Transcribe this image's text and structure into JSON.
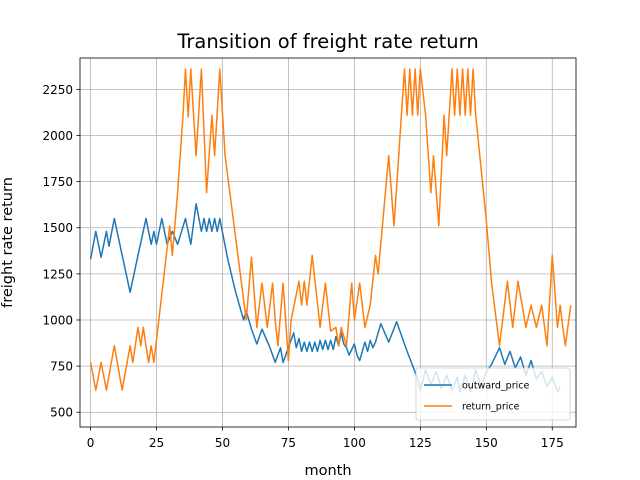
{
  "chart_data": {
    "type": "line",
    "title": "Transition of freight rate return",
    "xlabel": "month",
    "ylabel": "freight rate return",
    "xlim": [
      -4,
      184
    ],
    "ylim": [
      420,
      2420
    ],
    "xticks": [
      0,
      25,
      50,
      75,
      100,
      125,
      150,
      175
    ],
    "yticks": [
      500,
      750,
      1000,
      1250,
      1500,
      1750,
      2000,
      2250
    ],
    "grid": true,
    "legend_position": "lower-right",
    "series": [
      {
        "name": "outward_price",
        "color": "#1f77b4",
        "points": [
          [
            0,
            1330
          ],
          [
            2,
            1480
          ],
          [
            4,
            1340
          ],
          [
            6,
            1480
          ],
          [
            7,
            1400
          ],
          [
            9,
            1550
          ],
          [
            12,
            1350
          ],
          [
            15,
            1150
          ],
          [
            18,
            1350
          ],
          [
            21,
            1550
          ],
          [
            23,
            1410
          ],
          [
            24,
            1480
          ],
          [
            25,
            1410
          ],
          [
            27,
            1550
          ],
          [
            29,
            1410
          ],
          [
            31,
            1480
          ],
          [
            33,
            1410
          ],
          [
            36,
            1550
          ],
          [
            38,
            1410
          ],
          [
            40,
            1630
          ],
          [
            42,
            1480
          ],
          [
            43,
            1550
          ],
          [
            44,
            1480
          ],
          [
            45,
            1550
          ],
          [
            46,
            1480
          ],
          [
            47,
            1550
          ],
          [
            48,
            1480
          ],
          [
            49,
            1550
          ],
          [
            52,
            1330
          ],
          [
            55,
            1150
          ],
          [
            58,
            1000
          ],
          [
            59,
            1050
          ],
          [
            61,
            950
          ],
          [
            63,
            870
          ],
          [
            65,
            950
          ],
          [
            68,
            850
          ],
          [
            70,
            770
          ],
          [
            72,
            850
          ],
          [
            73,
            770
          ],
          [
            75,
            850
          ],
          [
            77,
            930
          ],
          [
            78,
            850
          ],
          [
            79,
            900
          ],
          [
            80,
            830
          ],
          [
            81,
            880
          ],
          [
            82,
            830
          ],
          [
            83,
            880
          ],
          [
            84,
            830
          ],
          [
            85,
            880
          ],
          [
            86,
            830
          ],
          [
            87,
            890
          ],
          [
            88,
            840
          ],
          [
            89,
            890
          ],
          [
            90,
            840
          ],
          [
            91,
            890
          ],
          [
            92,
            840
          ],
          [
            93,
            910
          ],
          [
            94,
            860
          ],
          [
            95,
            930
          ],
          [
            96,
            870
          ],
          [
            97,
            850
          ],
          [
            98,
            810
          ],
          [
            100,
            870
          ],
          [
            101,
            810
          ],
          [
            102,
            780
          ],
          [
            104,
            880
          ],
          [
            105,
            830
          ],
          [
            106,
            890
          ],
          [
            107,
            850
          ],
          [
            108,
            880
          ],
          [
            110,
            980
          ],
          [
            113,
            880
          ],
          [
            116,
            990
          ],
          [
            120,
            830
          ],
          [
            124,
            680
          ],
          [
            125,
            620
          ],
          [
            127,
            730
          ],
          [
            129,
            650
          ],
          [
            131,
            720
          ],
          [
            133,
            630
          ],
          [
            135,
            700
          ],
          [
            137,
            620
          ],
          [
            139,
            690
          ],
          [
            140,
            610
          ],
          [
            142,
            700
          ],
          [
            144,
            610
          ],
          [
            146,
            730
          ],
          [
            148,
            640
          ],
          [
            150,
            720
          ],
          [
            152,
            760
          ],
          [
            155,
            850
          ],
          [
            157,
            760
          ],
          [
            159,
            830
          ],
          [
            161,
            740
          ],
          [
            163,
            800
          ],
          [
            165,
            700
          ],
          [
            167,
            780
          ],
          [
            169,
            680
          ],
          [
            171,
            720
          ],
          [
            173,
            640
          ],
          [
            175,
            690
          ],
          [
            177,
            610
          ],
          [
            178,
            640
          ]
        ]
      },
      {
        "name": "return_price",
        "color": "#ff7f0e",
        "points": [
          [
            0,
            770
          ],
          [
            2,
            620
          ],
          [
            4,
            770
          ],
          [
            6,
            620
          ],
          [
            9,
            860
          ],
          [
            12,
            620
          ],
          [
            15,
            860
          ],
          [
            16,
            770
          ],
          [
            18,
            960
          ],
          [
            19,
            860
          ],
          [
            20,
            960
          ],
          [
            21,
            860
          ],
          [
            22,
            770
          ],
          [
            23,
            860
          ],
          [
            24,
            770
          ],
          [
            30,
            1510
          ],
          [
            31,
            1350
          ],
          [
            33,
            1690
          ],
          [
            35,
            2100
          ],
          [
            36,
            2360
          ],
          [
            37,
            2100
          ],
          [
            38,
            2360
          ],
          [
            40,
            1890
          ],
          [
            42,
            2360
          ],
          [
            44,
            1690
          ],
          [
            46,
            2110
          ],
          [
            47,
            1890
          ],
          [
            49,
            2360
          ],
          [
            51,
            1890
          ],
          [
            59,
            1000
          ],
          [
            61,
            1340
          ],
          [
            63,
            960
          ],
          [
            65,
            1200
          ],
          [
            67,
            960
          ],
          [
            69,
            1200
          ],
          [
            70,
            1000
          ],
          [
            71,
            860
          ],
          [
            73,
            1200
          ],
          [
            75,
            780
          ],
          [
            76,
            1000
          ],
          [
            79,
            1210
          ],
          [
            80,
            1080
          ],
          [
            81,
            1210
          ],
          [
            82,
            1080
          ],
          [
            84,
            1350
          ],
          [
            87,
            960
          ],
          [
            89,
            1200
          ],
          [
            91,
            940
          ],
          [
            93,
            960
          ],
          [
            94,
            860
          ],
          [
            95,
            960
          ],
          [
            97,
            860
          ],
          [
            99,
            1200
          ],
          [
            100,
            1000
          ],
          [
            102,
            1200
          ],
          [
            104,
            960
          ],
          [
            106,
            1080
          ],
          [
            108,
            1350
          ],
          [
            109,
            1250
          ],
          [
            113,
            1890
          ],
          [
            115,
            1510
          ],
          [
            119,
            2360
          ],
          [
            120,
            2110
          ],
          [
            121,
            2360
          ],
          [
            122,
            2110
          ],
          [
            123,
            2360
          ],
          [
            124,
            2110
          ],
          [
            125,
            2360
          ],
          [
            127,
            2110
          ],
          [
            129,
            1690
          ],
          [
            130,
            1890
          ],
          [
            132,
            1510
          ],
          [
            134,
            2110
          ],
          [
            135,
            1890
          ],
          [
            137,
            2360
          ],
          [
            138,
            2110
          ],
          [
            139,
            2360
          ],
          [
            140,
            2110
          ],
          [
            141,
            2360
          ],
          [
            142,
            2110
          ],
          [
            143,
            2360
          ],
          [
            144,
            2110
          ],
          [
            145,
            2360
          ],
          [
            146,
            2110
          ],
          [
            150,
            1540
          ],
          [
            152,
            1200
          ],
          [
            155,
            860
          ],
          [
            158,
            1210
          ],
          [
            160,
            960
          ],
          [
            162,
            1210
          ],
          [
            165,
            960
          ],
          [
            167,
            1080
          ],
          [
            169,
            960
          ],
          [
            171,
            1080
          ],
          [
            173,
            860
          ],
          [
            175,
            1350
          ],
          [
            177,
            960
          ],
          [
            178,
            1080
          ],
          [
            179,
            960
          ],
          [
            180,
            860
          ],
          [
            182,
            1080
          ]
        ]
      }
    ]
  }
}
